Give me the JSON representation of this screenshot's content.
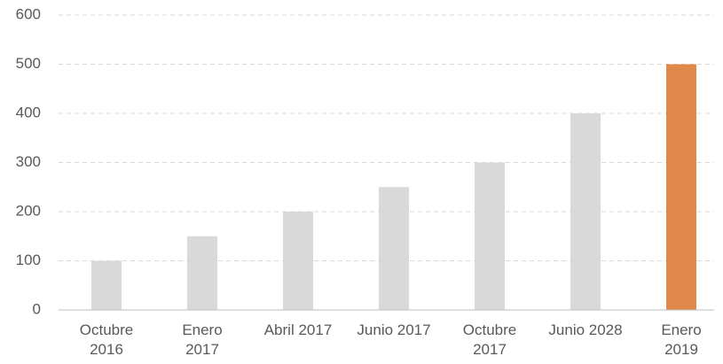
{
  "chart_data": {
    "type": "bar",
    "categories": [
      "Octubre\n2016",
      "Enero\n2017",
      "Abril 2017",
      "Junio 2017",
      "Octubre\n2017",
      "Junio 2028",
      "Enero\n2019"
    ],
    "values": [
      100,
      150,
      200,
      250,
      300,
      400,
      500
    ],
    "colors": [
      "#d9d9d9",
      "#d9d9d9",
      "#d9d9d9",
      "#d9d9d9",
      "#d9d9d9",
      "#d9d9d9",
      "#e0894a"
    ],
    "ylim": [
      0,
      600
    ],
    "yticks": [
      0,
      100,
      200,
      300,
      400,
      500,
      600
    ],
    "grid": true
  }
}
